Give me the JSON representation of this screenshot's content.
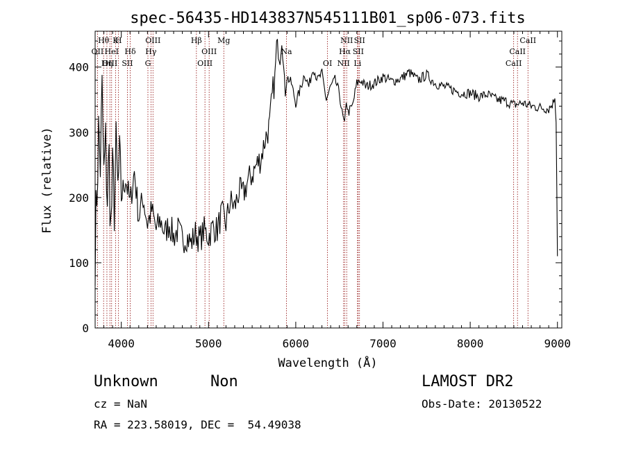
{
  "chart_data": {
    "type": "line",
    "title": "spec-56435-HD143837N545111B01_sp06-073.fits",
    "xlabel": "Wavelength (Å)",
    "ylabel": "Flux (relative)",
    "xlim": [
      3700,
      9050
    ],
    "ylim": [
      0,
      455
    ],
    "xticks": [
      4000,
      5000,
      6000,
      7000,
      8000,
      9000
    ],
    "yticks": [
      0,
      100,
      200,
      300,
      400
    ],
    "grid": false,
    "line_color": "#000000",
    "marker_color": "#8b0000",
    "series": [
      {
        "x": [
          3700,
          3720,
          3740,
          3760,
          3780,
          3800,
          3820,
          3840,
          3860,
          3880,
          3900,
          3920,
          3940,
          3960,
          3980,
          4000,
          4050,
          4100,
          4150,
          4200,
          4250,
          4300,
          4350,
          4400,
          4450,
          4500,
          4550,
          4600,
          4650,
          4700,
          4750,
          4800,
          4850,
          4900,
          4950,
          5000,
          5050,
          5100,
          5150,
          5200,
          5250,
          5300,
          5350,
          5400,
          5450,
          5500,
          5550,
          5600,
          5650,
          5700,
          5720,
          5740,
          5760,
          5780,
          5800,
          5820,
          5840,
          5860,
          5880,
          5900,
          5950,
          6000,
          6050,
          6100,
          6150,
          6200,
          6250,
          6300,
          6350,
          6400,
          6450,
          6500,
          6530,
          6560,
          6580,
          6600,
          6650,
          6700,
          6750,
          6800,
          6900,
          7000,
          7100,
          7200,
          7300,
          7400,
          7500,
          7600,
          7700,
          7800,
          7900,
          8000,
          8100,
          8200,
          8300,
          8400,
          8500,
          8600,
          8700,
          8800,
          8900,
          8950,
          8970,
          8985,
          9000
        ],
        "y": [
          120,
          210,
          300,
          250,
          360,
          230,
          280,
          200,
          260,
          150,
          230,
          190,
          270,
          210,
          250,
          200,
          230,
          190,
          240,
          170,
          200,
          160,
          180,
          150,
          165,
          145,
          160,
          140,
          150,
          135,
          140,
          130,
          145,
          135,
          150,
          140,
          155,
          150,
          175,
          160,
          195,
          185,
          210,
          205,
          225,
          235,
          250,
          260,
          290,
          310,
          340,
          365,
          380,
          430,
          420,
          410,
          440,
          400,
          360,
          385,
          375,
          345,
          365,
          390,
          370,
          400,
          380,
          390,
          350,
          370,
          380,
          360,
          330,
          310,
          350,
          330,
          340,
          375,
          380,
          370,
          375,
          385,
          378,
          382,
          392,
          380,
          388,
          375,
          370,
          365,
          360,
          360,
          355,
          358,
          350,
          348,
          342,
          345,
          340,
          338,
          336,
          345,
          355,
          320,
          110
        ]
      }
    ],
    "lines": [
      {
        "label": "Hθ",
        "x": 3797
      },
      {
        "label": "OII",
        "x": 3727
      },
      {
        "label": "OIII",
        "x": 3869
      },
      {
        "label": "K",
        "x": 3934
      },
      {
        "label": "HeI",
        "x": 3889
      },
      {
        "label": "Hη",
        "x": 3835
      },
      {
        "label": "H",
        "x": 3968
      },
      {
        "label": "Hδ",
        "x": 4102
      },
      {
        "label": "SII",
        "x": 4070
      },
      {
        "label": "OIII",
        "x": 4363
      },
      {
        "label": "Hγ",
        "x": 4340
      },
      {
        "label": "G",
        "x": 4305
      },
      {
        "label": "Hβ",
        "x": 4861
      },
      {
        "label": "OIII",
        "x": 5007
      },
      {
        "label": "OIII",
        "x": 4959
      },
      {
        "label": "Mg",
        "x": 5175
      },
      {
        "label": "Na",
        "x": 5893
      },
      {
        "label": "OI",
        "x": 6364
      },
      {
        "label": "NII",
        "x": 6584
      },
      {
        "label": "Hα",
        "x": 6563
      },
      {
        "label": "NII",
        "x": 6548
      },
      {
        "label": "SII",
        "x": 6731
      },
      {
        "label": "SII",
        "x": 6716
      },
      {
        "label": "Li",
        "x": 6708
      },
      {
        "label": "CaII",
        "x": 8662
      },
      {
        "label": "CaII",
        "x": 8542
      },
      {
        "label": "CaII",
        "x": 8498
      }
    ]
  },
  "info": {
    "class": "Unknown",
    "subclass": "Non",
    "survey": "LAMOST DR2",
    "cz": "cz = NaN",
    "obs_date": "Obs-Date: 20130522",
    "coords": "RA = 223.58019, DEC =  54.49038"
  }
}
